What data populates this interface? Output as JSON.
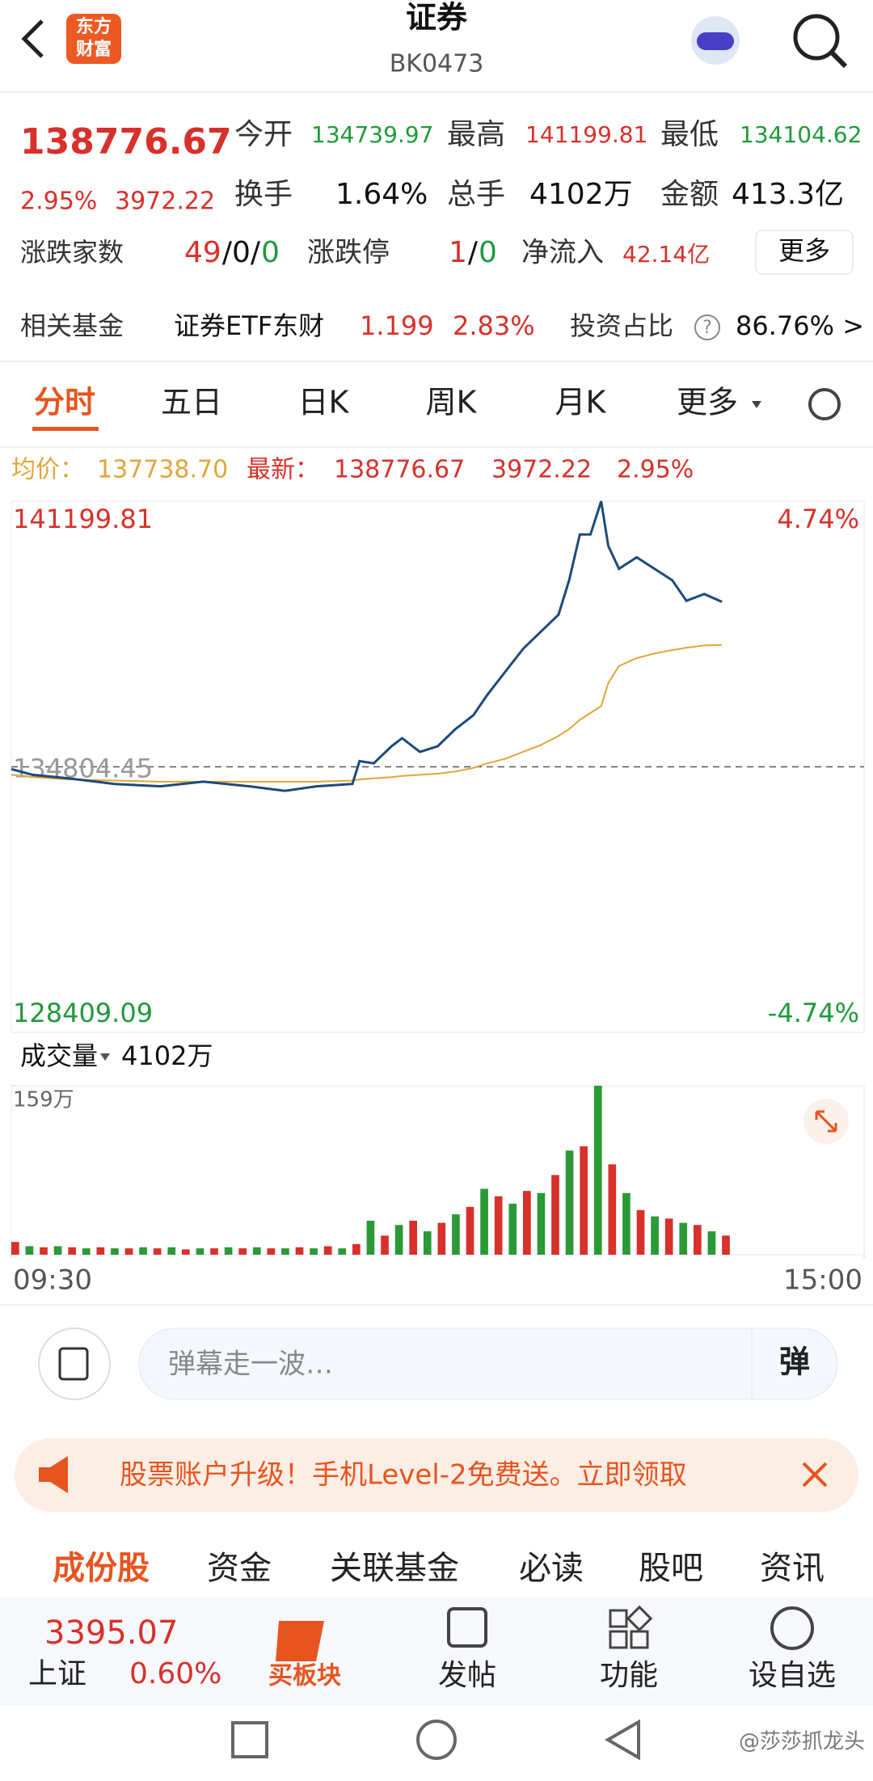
{
  "header": {
    "logo": [
      "东方",
      "财富"
    ],
    "title": "证券",
    "code": "BK0473"
  },
  "quote": {
    "price": "138776.67",
    "change_pct": "2.95%",
    "change": "3972.22",
    "stats": [
      [
        "今开",
        "134739.97"
      ],
      [
        "最高",
        "141199.81"
      ],
      [
        "最低",
        "134104.62"
      ],
      [
        "换手",
        "1.64%"
      ],
      [
        "总手",
        "4102万"
      ],
      [
        "金额",
        "413.3亿"
      ]
    ],
    "breadth_label": "涨跌家数",
    "breadth": [
      "49",
      "/0/",
      "0"
    ],
    "limit_label": "涨跌停",
    "limit": [
      "1",
      "/",
      "0"
    ],
    "inflow_label": "净流入",
    "inflow": "42.14亿",
    "more": "更多"
  },
  "fund": {
    "label": "相关基金",
    "name": "证券ETF东财",
    "price": "1.199",
    "change": "2.83%",
    "ratio_label": "投资占比",
    "help": "?",
    "ratio": "86.76% >"
  },
  "tabs": [
    "分时",
    "五日",
    "日K",
    "周K",
    "月K",
    "更多"
  ],
  "info": {
    "avg": "137738.70",
    "last": "138776.67",
    "change": "3972.22",
    "pct": "2.95%"
  },
  "chart_data": [
    {
      "type": "line",
      "xlim": [
        0,
        240
      ],
      "ylim": [
        128409.09,
        141199.81
      ],
      "yticks": [
        128409.09,
        134804.45,
        141199.81
      ],
      "y2lim": [
        -4.74,
        4.74
      ],
      "y2ticks": [
        {
          "value": -4.74,
          "label": "-4.74%"
        },
        {
          "value": 4.74,
          "label": "4.74%"
        }
      ],
      "x": [
        0,
        6,
        16,
        29,
        42,
        54,
        67,
        77,
        86,
        96,
        98,
        102,
        107,
        110,
        115,
        120,
        125,
        130,
        134,
        139,
        144,
        149,
        154,
        157,
        160,
        163,
        166,
        168,
        171,
        176,
        181,
        186,
        190,
        195,
        200
      ],
      "series": [
        {
          "name": "最新：",
          "color": "#1d4a7a",
          "values": [
            134749.4,
            134611.5,
            134528.8,
            134391,
            134335.9,
            134446.1,
            134335.9,
            134225.6,
            134335.9,
            134391,
            134942.3,
            134887.2,
            135300.7,
            135493.6,
            135162.8,
            135300.7,
            135714.2,
            136045,
            136541.1,
            137092.5,
            137643.8,
            138057.3,
            138470.8,
            139297.7,
            140400.4,
            140400.4,
            141199.81,
            140124.7,
            139573.4,
            139849.1,
            139573.4,
            139297.7,
            138801.6,
            138967,
            138776.67
          ]
        },
        {
          "name": "均价：",
          "color": "#e0a63a",
          "values": [
            134611.5,
            134556.4,
            134501.3,
            134473.7,
            134446.1,
            134446.1,
            134446.1,
            134446.1,
            134446.1,
            134473.7,
            134501.3,
            134528.8,
            134556.4,
            134584,
            134611.5,
            134639.1,
            134694.2,
            134776.9,
            134887.2,
            134997.4,
            135162.8,
            135328.2,
            135548.8,
            135714.2,
            135934.7,
            136100.1,
            136265.5,
            136816.8,
            137230.3,
            137423.3,
            137533.5,
            137616.2,
            137671.4,
            137726.5,
            137738.7
          ]
        }
      ]
    },
    {
      "type": "bar",
      "label": "成交量",
      "total": "4102万",
      "xlim": [
        0,
        240
      ],
      "xticks": [
        {
          "value": 0,
          "label": "09:30"
        },
        {
          "value": 240,
          "label": "15:00"
        }
      ],
      "ylim": [
        0,
        159
      ],
      "yticks": [
        {
          "value": 159,
          "label": "159万"
        }
      ],
      "colors": [
        "#d8302a",
        "#2a9a36"
      ],
      "x": [
        0,
        4,
        8,
        12,
        16,
        20,
        24,
        28,
        32,
        36,
        40,
        44,
        48,
        52,
        56,
        60,
        64,
        68,
        72,
        76,
        80,
        84,
        88,
        92,
        96,
        100,
        104,
        108,
        112,
        116,
        120,
        124,
        128,
        132,
        136,
        140,
        144,
        148,
        152,
        156,
        160,
        164,
        168,
        172,
        176,
        180,
        184,
        188,
        192,
        196,
        200
      ],
      "values": [
        12,
        8,
        7,
        8,
        7,
        6,
        7,
        6,
        6,
        7,
        6,
        7,
        5,
        6,
        6,
        7,
        6,
        7,
        6,
        6,
        7,
        6,
        8,
        6,
        10,
        32,
        18,
        28,
        32,
        22,
        30,
        38,
        45,
        62,
        55,
        48,
        60,
        58,
        75,
        98,
        102,
        159,
        85,
        58,
        42,
        36,
        34,
        30,
        28,
        22,
        18
      ]
    }
  ],
  "comment": {
    "placeholder": "弹幕走一波…",
    "button": "弹"
  },
  "banner": "股票账户升级！手机Level-2免费送。立即领取",
  "sections": [
    "成份股",
    "资金",
    "关联基金",
    "必读",
    "股吧",
    "资讯"
  ],
  "index": {
    "value": "3395.07",
    "name": "上证",
    "pct": "0.60%"
  },
  "actions": [
    "买板块",
    "发帖",
    "功能",
    "设自选"
  ],
  "watermark": "@莎莎抓龙头"
}
